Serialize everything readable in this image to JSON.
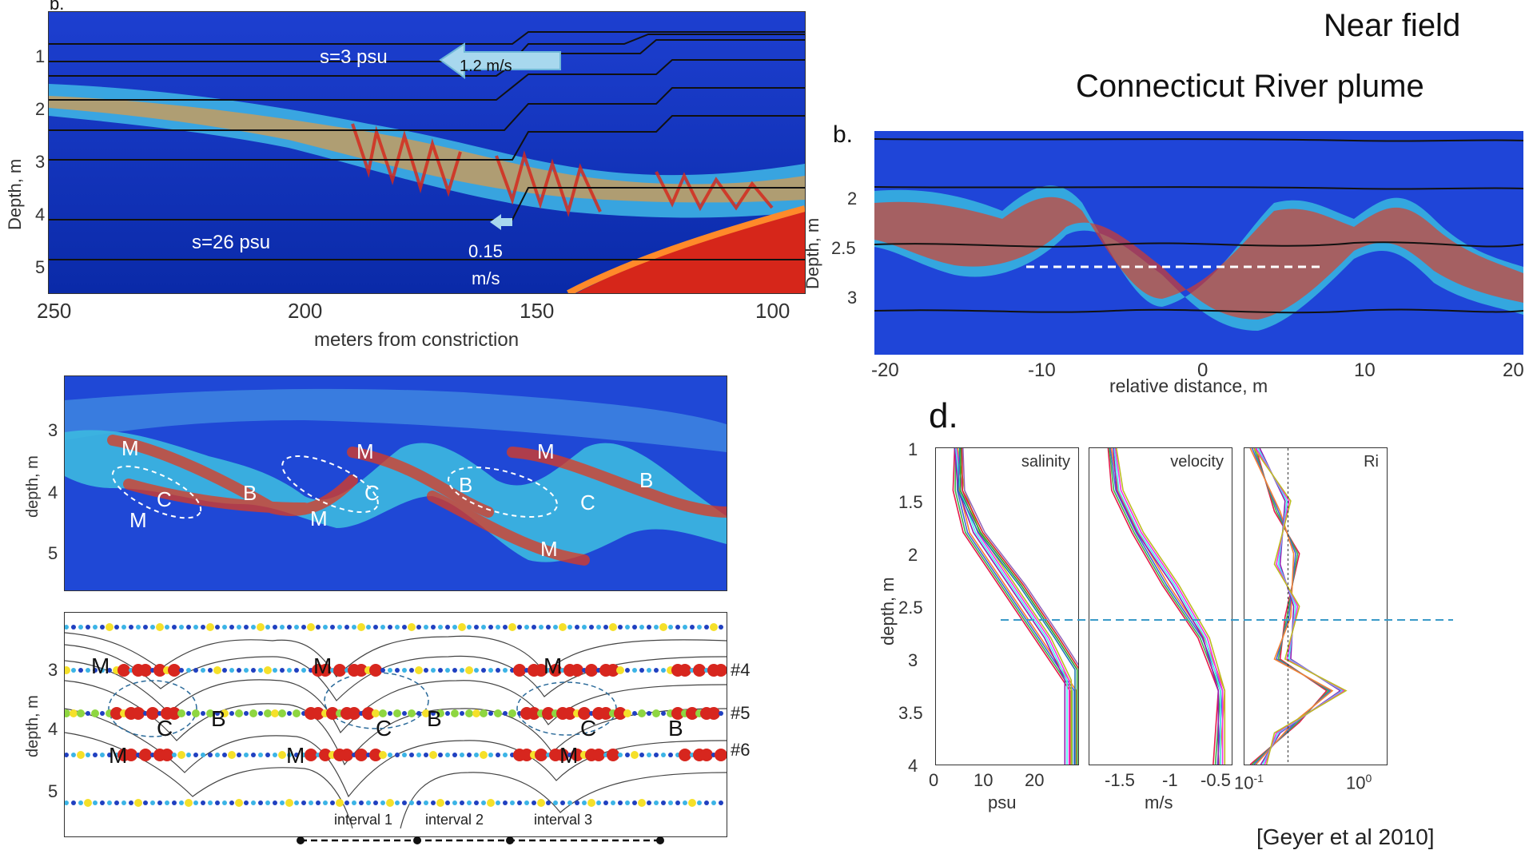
{
  "page": {
    "title_line1": "Near field",
    "title_line2": "Connecticut River plume",
    "citation": "[Geyer et al 2010]"
  },
  "panel_top_left": {
    "label_partial": "b.",
    "annotations": {
      "surface_salinity": "s=3 psu",
      "surface_speed": "1.2 m/s",
      "bottom_salinity": "s=26 psu",
      "bottom_speed_line1": "0.15",
      "bottom_speed_line2": "m/s"
    },
    "ylabel": "Depth, m",
    "xlabel": "meters from constriction",
    "yticks": [
      "1",
      "2",
      "3",
      "4",
      "5"
    ],
    "xticks": [
      "250",
      "200",
      "150",
      "100"
    ]
  },
  "panel_top_right": {
    "label": "b.",
    "ylabel": "Depth, m",
    "xlabel": "relative distance, m",
    "yticks": [
      "2",
      "2.5",
      "3"
    ],
    "xticks": [
      "-20",
      "-10",
      "0",
      "10",
      "20"
    ]
  },
  "panel_middle_left": {
    "ylabel": "depth, m",
    "yticks": [
      "3",
      "4",
      "5"
    ],
    "letters": [
      "M",
      "M",
      "C",
      "B",
      "M",
      "C",
      "M",
      "B",
      "M",
      "C",
      "M",
      "B"
    ]
  },
  "panel_bottom_left": {
    "ylabel": "depth, m",
    "yticks": [
      "3",
      "4",
      "5"
    ],
    "line_labels": [
      "#4",
      "#5",
      "#6"
    ],
    "letters": [
      "M",
      "M",
      "M",
      "C",
      "B",
      "C",
      "B",
      "C",
      "B",
      "M",
      "M",
      "M"
    ],
    "intervals": [
      "interval 1",
      "interval  2",
      "interval 3"
    ]
  },
  "panel_d": {
    "label": "d.",
    "ylabel": "depth, m",
    "yticks": [
      "1",
      "1.5",
      "2",
      "2.5",
      "3",
      "3.5",
      "4"
    ],
    "subplots": [
      {
        "title": "salinity",
        "xlabel": "psu",
        "xticks": [
          "0",
          "10",
          "20"
        ]
      },
      {
        "title": "velocity",
        "xlabel": "m/s",
        "xticks": [
          "-1.5",
          "-1",
          "-0.5"
        ]
      },
      {
        "title": "Ri",
        "xlabel": "",
        "xticks": [
          "10",
          "10"
        ],
        "xtick_exponents": [
          "-1",
          "0"
        ]
      }
    ]
  },
  "chart_data": [
    {
      "type": "heatmap",
      "ylabel": "Depth, m",
      "xlabel": "meters from constriction",
      "xlim": [
        250,
        100
      ],
      "ylim": [
        5.4,
        0.6
      ],
      "x_ticks": [
        250,
        200,
        150,
        100
      ],
      "y_ticks": [
        1,
        2,
        3,
        4,
        5
      ]
    },
    {
      "type": "heatmap",
      "ylabel": "Depth, m",
      "xlabel": "relative distance, m",
      "xlim": [
        -20,
        20
      ],
      "x_ticks": [
        -20,
        -10,
        0,
        10,
        20
      ],
      "y_ticks": [
        2,
        2.5,
        3
      ]
    },
    {
      "type": "line",
      "title": "salinity",
      "xlabel": "psu",
      "ylabel": "depth, m",
      "xlim": [
        0,
        28
      ],
      "ylim": [
        4,
        1
      ],
      "series": [
        {
          "x": [
            4,
            4,
            6,
            13,
            20,
            27,
            27
          ],
          "y": [
            1.0,
            1.4,
            1.8,
            2.3,
            2.8,
            3.3,
            4.0
          ]
        },
        {
          "x": [
            4,
            5,
            8,
            15,
            22,
            26,
            26
          ],
          "y": [
            1.0,
            1.4,
            1.8,
            2.3,
            2.8,
            3.2,
            4.0
          ]
        },
        {
          "x": [
            5,
            5,
            9,
            17,
            24,
            28,
            28
          ],
          "y": [
            1.0,
            1.4,
            1.8,
            2.3,
            2.8,
            3.1,
            4.0
          ]
        }
      ]
    },
    {
      "type": "line",
      "title": "velocity",
      "xlabel": "m/s",
      "ylabel": "depth, m",
      "xlim": [
        -1.8,
        -0.4
      ],
      "ylim": [
        4,
        1
      ],
      "series": [
        {
          "x": [
            -1.6,
            -1.55,
            -1.35,
            -1.05,
            -0.7,
            -0.5,
            -0.55
          ],
          "y": [
            1.0,
            1.4,
            1.8,
            2.3,
            2.8,
            3.3,
            4.0
          ]
        },
        {
          "x": [
            -1.55,
            -1.5,
            -1.3,
            -0.95,
            -0.65,
            -0.5,
            -0.5
          ],
          "y": [
            1.0,
            1.4,
            1.8,
            2.3,
            2.8,
            3.3,
            4.0
          ]
        }
      ]
    },
    {
      "type": "line",
      "title": "Ri",
      "ylabel": "depth, m",
      "xscale": "log",
      "xlim": [
        0.1,
        2
      ],
      "ylim": [
        4,
        1
      ],
      "series": [
        {
          "x": [
            0.12,
            0.2,
            0.3,
            0.25,
            0.2,
            0.6,
            0.3,
            0.12
          ],
          "y": [
            1.0,
            1.6,
            2.0,
            2.6,
            3.0,
            3.3,
            3.6,
            4.0
          ]
        },
        {
          "x": [
            0.13,
            0.25,
            0.2,
            0.3,
            0.25,
            0.8,
            0.2,
            0.15
          ],
          "y": [
            1.0,
            1.5,
            2.1,
            2.5,
            3.0,
            3.3,
            3.7,
            4.0
          ]
        }
      ]
    }
  ]
}
